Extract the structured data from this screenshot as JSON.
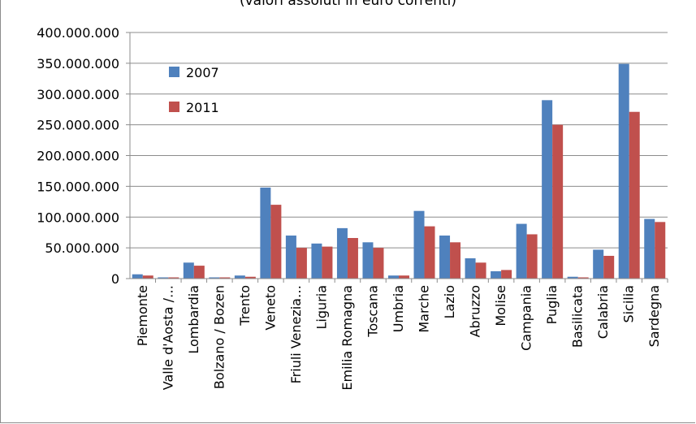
{
  "subtitle": "(valori assoluti in euro correnti)",
  "chart_data": {
    "type": "bar",
    "title": "",
    "subtitle": "(valori assoluti in euro correnti)",
    "xlabel": "",
    "ylabel": "",
    "ylim": [
      0,
      400000000
    ],
    "yticks": [
      "0",
      "50.000.000",
      "100.000.000",
      "150.000.000",
      "200.000.000",
      "250.000.000",
      "300.000.000",
      "350.000.000",
      "400.000.000"
    ],
    "grid": true,
    "legend_position": "top-left",
    "categories": [
      "Piemonte",
      "Valle d'Aosta /…",
      "Lombardia",
      "Bolzano / Bozen",
      "Trento",
      "Veneto",
      "Friuli Venezia…",
      "Liguria",
      "Emilia Romagna",
      "Toscana",
      "Umbria",
      "Marche",
      "Lazio",
      "Abruzzo",
      "Molise",
      "Campania",
      "Puglia",
      "Basilicata",
      "Calabria",
      "Sicilia",
      "Sardegna"
    ],
    "series": [
      {
        "name": "2007",
        "color": "#4f81bd",
        "values": [
          7000000,
          2000000,
          26000000,
          2000000,
          5000000,
          148000000,
          70000000,
          57000000,
          82000000,
          59000000,
          5000000,
          110000000,
          70000000,
          33000000,
          12000000,
          89000000,
          290000000,
          3000000,
          47000000,
          349000000,
          97000000
        ]
      },
      {
        "name": "2011",
        "color": "#c0504d",
        "values": [
          5000000,
          2000000,
          21000000,
          2000000,
          3000000,
          120000000,
          50000000,
          52000000,
          66000000,
          50000000,
          5000000,
          85000000,
          59000000,
          26000000,
          14000000,
          72000000,
          250000000,
          2000000,
          37000000,
          271000000,
          92000000
        ]
      }
    ]
  }
}
